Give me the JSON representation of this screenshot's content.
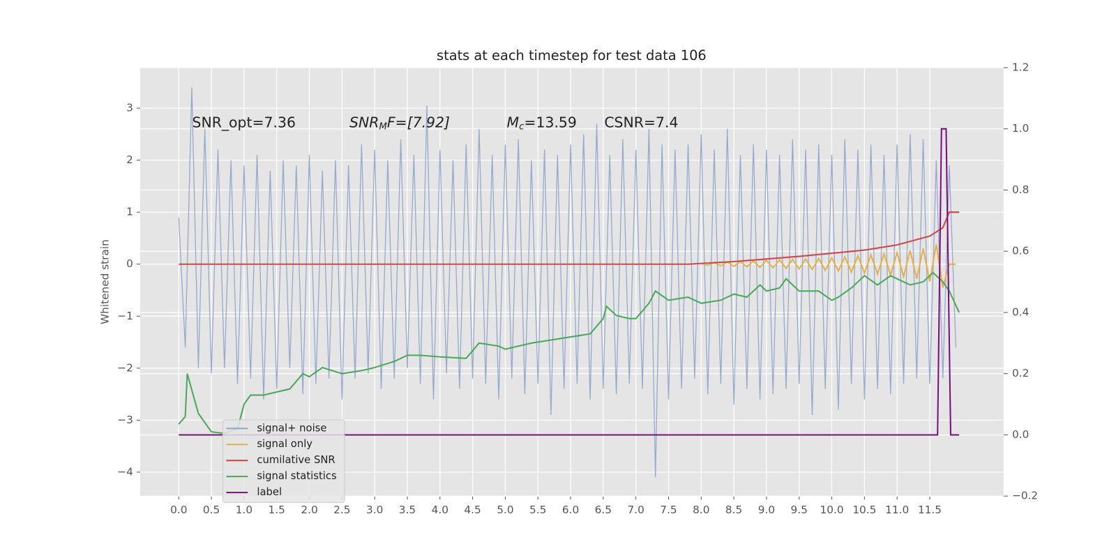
{
  "chart_data": {
    "type": "line",
    "title": "stats at each timestep for test data 106",
    "ylabel": "Whitened strain",
    "annotations": [
      {
        "parts": [
          "SNR_opt=7.36"
        ]
      },
      {
        "parts": [
          "SNR",
          "M",
          "F=[7.92]"
        ]
      },
      {
        "parts": [
          "M",
          "c",
          "=13.59"
        ]
      },
      {
        "parts": [
          "CSNR=7.4"
        ]
      }
    ],
    "xlim": [
      -0.59,
      12.63
    ],
    "ylim": [
      -4.46,
      3.78
    ],
    "y2lim": [
      -0.2,
      1.2
    ],
    "xticks": [
      {
        "value": 0,
        "label": "0.0"
      },
      0.5,
      {
        "value": 1,
        "label": "1.0"
      },
      1.5,
      {
        "value": 2,
        "label": "2.0"
      },
      2.5,
      {
        "value": 3,
        "label": "3.0"
      },
      3.5,
      {
        "value": 4,
        "label": "4.0"
      },
      4.5,
      {
        "value": 5,
        "label": "5.0"
      },
      5.5,
      {
        "value": 6,
        "label": "6.0"
      },
      6.5,
      {
        "value": 7,
        "label": "7.0"
      },
      7.5,
      {
        "value": 8,
        "label": "8.0"
      },
      8.5,
      {
        "value": 9,
        "label": "9.0"
      },
      9.5,
      {
        "value": 10,
        "label": "10.0"
      },
      10.5,
      {
        "value": 11,
        "label": "11.0"
      },
      11.5
    ],
    "yticks": [
      {
        "value": -4,
        "label": "−4"
      },
      {
        "value": -3,
        "label": "−3"
      },
      {
        "value": -2,
        "label": "−2"
      },
      {
        "value": -1,
        "label": "−1"
      },
      0,
      1,
      2,
      3
    ],
    "y2ticks": [
      {
        "value": -0.2,
        "label": "−0.2"
      },
      {
        "value": 0,
        "label": "0.0"
      },
      0.2,
      0.4,
      0.6,
      0.8,
      {
        "value": 1,
        "label": "1.0"
      },
      1.2
    ],
    "grid": true,
    "legend": "lower left",
    "series": [
      {
        "name": "signal+ noise",
        "color": "#8fa4c9",
        "axis": "y",
        "x": [
          0.0,
          0.1,
          0.2,
          0.3,
          0.4,
          0.5,
          0.6,
          0.7,
          0.8,
          0.9,
          1.0,
          1.1,
          1.2,
          1.3,
          1.4,
          1.5,
          1.6,
          1.7,
          1.8,
          1.9,
          2.0,
          2.1,
          2.2,
          2.3,
          2.4,
          2.5,
          2.6,
          2.7,
          2.8,
          2.9,
          3.0,
          3.1,
          3.2,
          3.3,
          3.4,
          3.5,
          3.6,
          3.7,
          3.8,
          3.9,
          4.0,
          4.1,
          4.2,
          4.3,
          4.4,
          4.5,
          4.6,
          4.7,
          4.8,
          4.9,
          5.0,
          5.1,
          5.2,
          5.3,
          5.4,
          5.5,
          5.6,
          5.7,
          5.8,
          5.9,
          6.0,
          6.1,
          6.2,
          6.3,
          6.4,
          6.5,
          6.6,
          6.7,
          6.8,
          6.9,
          7.0,
          7.1,
          7.2,
          7.3,
          7.4,
          7.5,
          7.6,
          7.7,
          7.8,
          7.9,
          8.0,
          8.1,
          8.2,
          8.3,
          8.4,
          8.5,
          8.6,
          8.7,
          8.8,
          8.9,
          9.0,
          9.1,
          9.2,
          9.3,
          9.4,
          9.5,
          9.6,
          9.7,
          9.8,
          9.9,
          10.0,
          10.1,
          10.2,
          10.3,
          10.4,
          10.5,
          10.6,
          10.7,
          10.8,
          10.9,
          11.0,
          11.1,
          11.2,
          11.3,
          11.4,
          11.5,
          11.6,
          11.7,
          11.8,
          11.9
        ],
        "values": [
          0.9,
          -1.6,
          3.4,
          -2.0,
          2.6,
          -2.1,
          2.2,
          -2.0,
          2.0,
          -2.3,
          1.9,
          -2.2,
          2.1,
          -2.6,
          1.8,
          -2.4,
          2.0,
          -2.0,
          1.9,
          -2.5,
          2.1,
          -2.3,
          1.8,
          -2.2,
          2.0,
          -2.6,
          1.9,
          -2.2,
          2.3,
          -2.1,
          2.2,
          -2.4,
          2.0,
          -2.2,
          2.4,
          -2.0,
          2.1,
          -2.3,
          3.05,
          -2.6,
          2.2,
          -2.1,
          2.0,
          -2.4,
          2.3,
          -2.2,
          2.6,
          -2.3,
          2.1,
          -2.6,
          2.3,
          -2.2,
          2.4,
          -2.5,
          2.0,
          -2.3,
          2.2,
          -2.9,
          2.1,
          -2.4,
          2.3,
          -2.3,
          2.5,
          -2.6,
          2.7,
          -2.4,
          2.1,
          -2.5,
          2.4,
          -2.3,
          2.2,
          -2.4,
          2.6,
          -4.1,
          2.3,
          -2.6,
          2.2,
          -2.4,
          2.3,
          -2.2,
          2.5,
          -2.5,
          2.2,
          -2.3,
          2.6,
          -2.7,
          2.1,
          -2.4,
          2.3,
          -2.6,
          2.2,
          -2.5,
          2.1,
          -2.4,
          2.4,
          -2.3,
          2.2,
          -2.9,
          2.3,
          -2.4,
          2.1,
          -2.8,
          2.4,
          -2.3,
          2.2,
          -2.6,
          2.3,
          -2.4,
          2.1,
          -2.5,
          2.3,
          -2.3,
          2.5,
          -2.2,
          2.4,
          -2.3,
          2.0,
          -2.2,
          1.9,
          -1.6
        ]
      },
      {
        "name": "signal only",
        "color": "#e8b04a",
        "axis": "y",
        "x": [
          8.0,
          8.1,
          8.2,
          8.3,
          8.4,
          8.5,
          8.6,
          8.7,
          8.8,
          8.9,
          9.0,
          9.1,
          9.2,
          9.3,
          9.4,
          9.5,
          9.6,
          9.7,
          9.8,
          9.9,
          10.0,
          10.1,
          10.2,
          10.3,
          10.4,
          10.5,
          10.6,
          10.7,
          10.8,
          10.9,
          11.0,
          11.1,
          11.2,
          11.3,
          11.4,
          11.5,
          11.6,
          11.7,
          11.8,
          11.9
        ],
        "values": [
          0.02,
          -0.02,
          0.03,
          -0.03,
          0.04,
          -0.04,
          0.05,
          -0.05,
          0.06,
          -0.06,
          0.07,
          -0.07,
          0.08,
          -0.08,
          0.09,
          -0.09,
          0.1,
          -0.1,
          0.11,
          -0.12,
          0.12,
          -0.13,
          0.14,
          -0.15,
          0.16,
          -0.17,
          0.18,
          -0.19,
          0.2,
          -0.21,
          0.22,
          -0.24,
          0.26,
          -0.28,
          0.3,
          -0.33,
          0.38,
          -0.45,
          0,
          0
        ]
      },
      {
        "name": "cumilative SNR",
        "color": "#d0474a",
        "axis": "y",
        "x": [
          0,
          7.8,
          8.5,
          9,
          9.5,
          10,
          10.5,
          11,
          11.5,
          11.7,
          11.8,
          11.95
        ],
        "values": [
          0,
          0,
          0.05,
          0.1,
          0.15,
          0.21,
          0.27,
          0.37,
          0.54,
          0.7,
          1,
          1
        ]
      },
      {
        "name": "signal statistics",
        "color": "#4aa85a",
        "axis": "y2",
        "x": [
          0,
          0.1,
          0.13,
          0.3,
          0.5,
          0.7,
          0.9,
          1.0,
          1.1,
          1.3,
          1.5,
          1.7,
          1.9,
          2.0,
          2.2,
          2.5,
          2.8,
          3.0,
          3.3,
          3.5,
          3.7,
          4.0,
          4.4,
          4.6,
          4.9,
          5.0,
          5.4,
          5.7,
          6.0,
          6.3,
          6.5,
          6.55,
          6.7,
          6.9,
          7.0,
          7.2,
          7.3,
          7.5,
          7.8,
          8.0,
          8.3,
          8.5,
          8.7,
          8.9,
          9.0,
          9.2,
          9.3,
          9.5,
          9.8,
          10.0,
          10.1,
          10.3,
          10.5,
          10.7,
          10.9,
          11.0,
          11.2,
          11.4,
          11.55,
          11.7,
          11.8,
          11.95
        ],
        "values": [
          0.035,
          0.06,
          0.2,
          0.07,
          0.01,
          0.005,
          0.02,
          0.1,
          0.13,
          0.13,
          0.14,
          0.15,
          0.2,
          0.19,
          0.22,
          0.2,
          0.21,
          0.22,
          0.24,
          0.26,
          0.26,
          0.255,
          0.25,
          0.3,
          0.29,
          0.28,
          0.3,
          0.31,
          0.32,
          0.33,
          0.38,
          0.42,
          0.39,
          0.38,
          0.38,
          0.43,
          0.47,
          0.44,
          0.45,
          0.43,
          0.44,
          0.46,
          0.45,
          0.49,
          0.47,
          0.48,
          0.51,
          0.47,
          0.47,
          0.44,
          0.45,
          0.48,
          0.52,
          0.49,
          0.52,
          0.51,
          0.49,
          0.5,
          0.53,
          0.5,
          0.47,
          0.4
        ]
      },
      {
        "name": "label",
        "color": "#7a0f80",
        "axis": "y2",
        "x": [
          0,
          11.62,
          11.68,
          11.75,
          11.82,
          11.95
        ],
        "values": [
          0,
          0,
          1,
          1,
          0,
          0
        ]
      }
    ]
  }
}
